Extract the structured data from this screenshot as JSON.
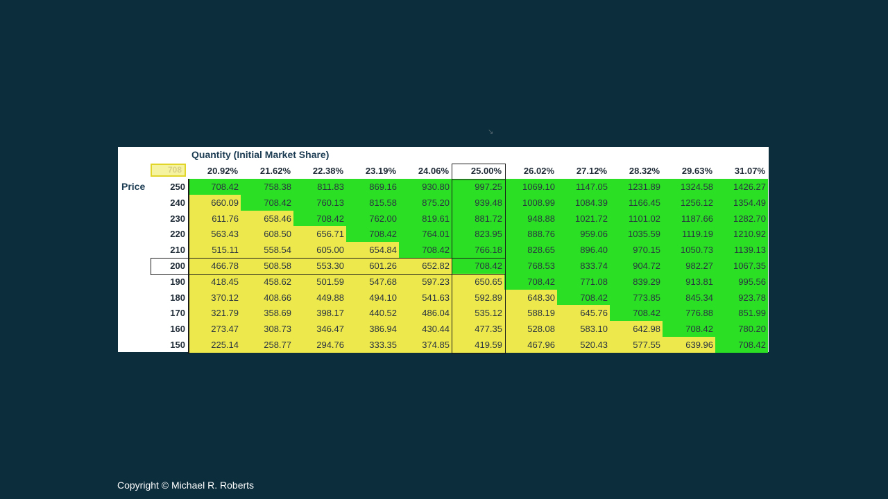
{
  "table": {
    "title": "Quantity (Initial Market Share)",
    "corner_value": "708",
    "row_axis_label": "Price",
    "base_price": "200",
    "base_share": "25.00%",
    "columns": [
      "20.92%",
      "21.62%",
      "22.38%",
      "23.19%",
      "24.06%",
      "25.00%",
      "26.02%",
      "27.12%",
      "28.32%",
      "29.63%",
      "31.07%"
    ],
    "rows": [
      {
        "price": "250",
        "values": [
          "708.42",
          "758.38",
          "811.83",
          "869.16",
          "930.80",
          "997.25",
          "1069.10",
          "1147.05",
          "1231.89",
          "1324.58",
          "1426.27"
        ]
      },
      {
        "price": "240",
        "values": [
          "660.09",
          "708.42",
          "760.13",
          "815.58",
          "875.20",
          "939.48",
          "1008.99",
          "1084.39",
          "1166.45",
          "1256.12",
          "1354.49"
        ]
      },
      {
        "price": "230",
        "values": [
          "611.76",
          "658.46",
          "708.42",
          "762.00",
          "819.61",
          "881.72",
          "948.88",
          "1021.72",
          "1101.02",
          "1187.66",
          "1282.70"
        ]
      },
      {
        "price": "220",
        "values": [
          "563.43",
          "608.50",
          "656.71",
          "708.42",
          "764.01",
          "823.95",
          "888.76",
          "959.06",
          "1035.59",
          "1119.19",
          "1210.92"
        ]
      },
      {
        "price": "210",
        "values": [
          "515.11",
          "558.54",
          "605.00",
          "654.84",
          "708.42",
          "766.18",
          "828.65",
          "896.40",
          "970.15",
          "1050.73",
          "1139.13"
        ]
      },
      {
        "price": "200",
        "values": [
          "466.78",
          "508.58",
          "553.30",
          "601.26",
          "652.82",
          "708.42",
          "768.53",
          "833.74",
          "904.72",
          "982.27",
          "1067.35"
        ]
      },
      {
        "price": "190",
        "values": [
          "418.45",
          "458.62",
          "501.59",
          "547.68",
          "597.23",
          "650.65",
          "708.42",
          "771.08",
          "839.29",
          "913.81",
          "995.56"
        ]
      },
      {
        "price": "180",
        "values": [
          "370.12",
          "408.66",
          "449.88",
          "494.10",
          "541.63",
          "592.89",
          "648.30",
          "708.42",
          "773.85",
          "845.34",
          "923.78"
        ]
      },
      {
        "price": "170",
        "values": [
          "321.79",
          "358.69",
          "398.17",
          "440.52",
          "486.04",
          "535.12",
          "588.19",
          "645.76",
          "708.42",
          "776.88",
          "851.99"
        ]
      },
      {
        "price": "160",
        "values": [
          "273.47",
          "308.73",
          "346.47",
          "386.94",
          "430.44",
          "477.35",
          "528.08",
          "583.10",
          "642.98",
          "708.42",
          "780.20"
        ]
      },
      {
        "price": "150",
        "values": [
          "225.14",
          "258.77",
          "294.76",
          "333.35",
          "374.85",
          "419.59",
          "467.96",
          "520.43",
          "577.55",
          "639.96",
          "708.42"
        ]
      }
    ],
    "cell_colors": {
      "above_threshold": "#2be024",
      "below_threshold": "#ede84c"
    }
  },
  "footer": {
    "copyright": "Copyright © Michael R. Roberts"
  }
}
